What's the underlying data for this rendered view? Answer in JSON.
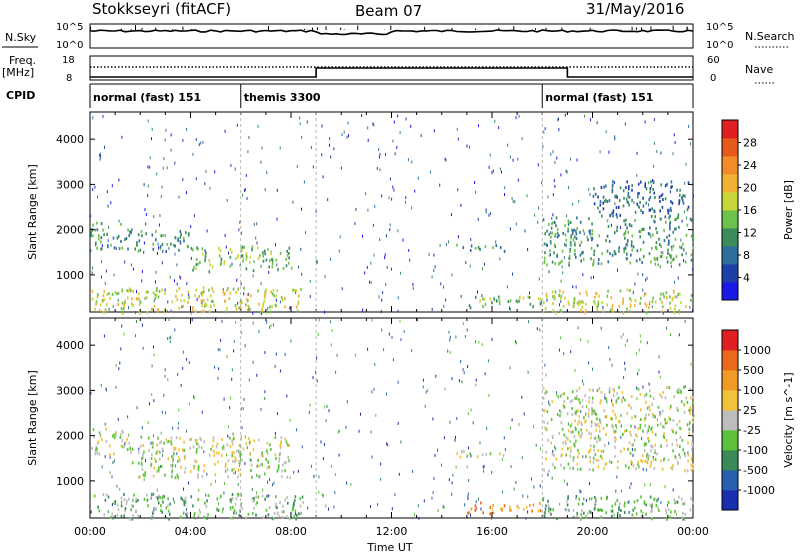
{
  "header": {
    "radar": "Stokkseyri (fitACF)",
    "beam": "Beam 07",
    "date": "31/May/2016"
  },
  "nsky_panel": {
    "left_label": "N.Sky",
    "right_label": "N.Search",
    "left_ticks": [
      "10^5",
      "10^0"
    ],
    "right_ticks": [
      "10^5",
      "10^0"
    ]
  },
  "freq_panel": {
    "left_label_top": "Freq.",
    "left_label_unit": "[MHz]",
    "left_ticks": [
      "18",
      "8"
    ],
    "right_label": "Nave",
    "right_ticks": [
      "60",
      "0"
    ]
  },
  "cpid": {
    "label": "CPID",
    "segments": [
      {
        "name": "normal (fast) 151",
        "start_hour": 0,
        "end_hour": 6
      },
      {
        "name": "themis 3300",
        "start_hour": 6,
        "end_hour": 18
      },
      {
        "name": "normal (fast) 151",
        "start_hour": 18,
        "end_hour": 24
      }
    ]
  },
  "chart_data": [
    {
      "type": "heatmap",
      "title": "Power",
      "xlabel": "Time UT",
      "ylabel": "Slant Range [km]",
      "xlim_hours": [
        0,
        24
      ],
      "ylim_km": [
        180,
        4600
      ],
      "y_ticks": [
        1000,
        2000,
        3000,
        4000
      ],
      "x_ticks": [
        "00:00",
        "04:00",
        "08:00",
        "12:00",
        "16:00",
        "20:00",
        "00:00"
      ],
      "colorbar": {
        "label": "Power [dB]",
        "ticks": [
          "4",
          "8",
          "12",
          "16",
          "20",
          "24",
          "28"
        ],
        "colors": [
          "#1a1ae6",
          "#1e3fa8",
          "#2f6fa0",
          "#3a8c5a",
          "#6cc24a",
          "#c8d63a",
          "#f2b134",
          "#f28c28",
          "#e85a1a",
          "#e02020"
        ]
      },
      "echo_regions": [
        {
          "t0": 0.0,
          "t1": 1.5,
          "r0": 1600,
          "r1": 2200,
          "level": 3
        },
        {
          "t0": 1.5,
          "t1": 4.0,
          "r0": 1550,
          "r1": 2000,
          "level": 3
        },
        {
          "t0": 4.0,
          "t1": 8.0,
          "r0": 1100,
          "r1": 1650,
          "level": 4
        },
        {
          "t0": 0.0,
          "t1": 8.5,
          "r0": 180,
          "r1": 750,
          "level": 5
        },
        {
          "t0": 14.5,
          "t1": 16.5,
          "r0": 1550,
          "r1": 1700,
          "level": 3
        },
        {
          "t0": 15.0,
          "t1": 18.0,
          "r0": 300,
          "r1": 550,
          "level": 4
        },
        {
          "t0": 18.0,
          "t1": 24.0,
          "r0": 1250,
          "r1": 2300,
          "level": 3
        },
        {
          "t0": 20.0,
          "t1": 24.0,
          "r0": 2300,
          "r1": 3100,
          "level": 2
        },
        {
          "t0": 18.0,
          "t1": 24.0,
          "r0": 180,
          "r1": 700,
          "level": 5
        }
      ]
    },
    {
      "type": "heatmap",
      "title": "Velocity",
      "xlabel": "Time UT",
      "ylabel": "Slant Range [km]",
      "xlim_hours": [
        0,
        24
      ],
      "ylim_km": [
        180,
        4600
      ],
      "y_ticks": [
        1000,
        2000,
        3000,
        4000
      ],
      "x_ticks": [
        "00:00",
        "04:00",
        "08:00",
        "12:00",
        "16:00",
        "20:00",
        "00:00"
      ],
      "colorbar": {
        "label": "Velocity [m s^-1]",
        "ticks": [
          "1000",
          "500",
          "100",
          "25",
          "-25",
          "-100",
          "-500",
          "-1000"
        ],
        "colors": [
          "#1a2fb0",
          "#2a5fb0",
          "#3a8a5a",
          "#5cc23a",
          "#bdbdbd",
          "#f2c23a",
          "#f29a28",
          "#e86a1a",
          "#e02020"
        ]
      },
      "echo_regions": [
        {
          "t0": 0.0,
          "t1": 1.5,
          "r0": 1600,
          "r1": 2200,
          "level": 4
        },
        {
          "t0": 1.5,
          "t1": 8.0,
          "r0": 1100,
          "r1": 2000,
          "level": 4
        },
        {
          "t0": 0.0,
          "t1": 8.5,
          "r0": 180,
          "r1": 750,
          "level": 3
        },
        {
          "t0": 14.5,
          "t1": 16.5,
          "r0": 1550,
          "r1": 1700,
          "level": 4
        },
        {
          "t0": 15.0,
          "t1": 18.0,
          "r0": 300,
          "r1": 550,
          "level": 6
        },
        {
          "t0": 18.0,
          "t1": 24.0,
          "r0": 1250,
          "r1": 3100,
          "level": 4
        },
        {
          "t0": 18.0,
          "t1": 24.0,
          "r0": 180,
          "r1": 700,
          "level": 3
        }
      ]
    }
  ]
}
